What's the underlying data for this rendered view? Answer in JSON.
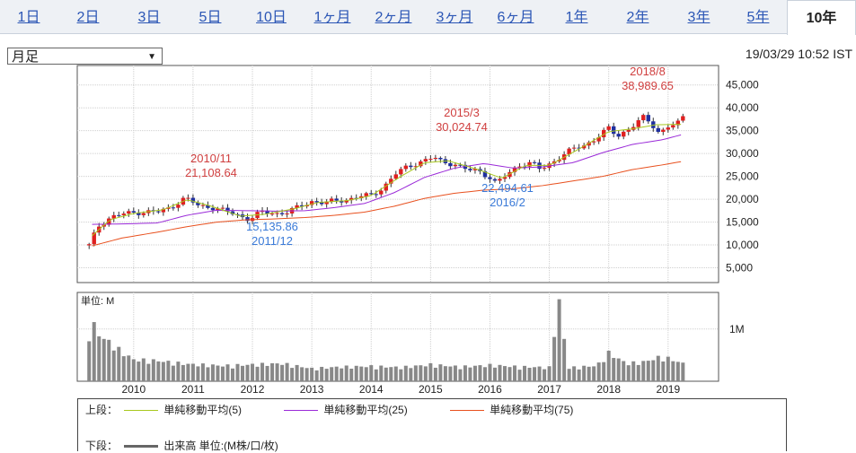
{
  "tabs": [
    {
      "label": "1日"
    },
    {
      "label": "2日"
    },
    {
      "label": "3日"
    },
    {
      "label": "5日"
    },
    {
      "label": "10日"
    },
    {
      "label": "1ヶ月"
    },
    {
      "label": "2ヶ月"
    },
    {
      "label": "3ヶ月"
    },
    {
      "label": "6ヶ月"
    },
    {
      "label": "1年"
    },
    {
      "label": "2年"
    },
    {
      "label": "3年"
    },
    {
      "label": "5年"
    },
    {
      "label": "10年"
    }
  ],
  "active_tab": "10年",
  "period_select": {
    "value": "月足"
  },
  "timestamp": "19/03/29 10:52 IST",
  "colors": {
    "up": "#e02020",
    "down": "#2030a0",
    "ma5": "#a8c81e",
    "ma25": "#9a2ad8",
    "ma75": "#e8501e",
    "volume": "#888888",
    "high_label": "#d04040",
    "low_label": "#3a7ad8"
  },
  "chart_data": {
    "type": "candlestick",
    "y_ticks": [
      "45,000",
      "40,000",
      "35,000",
      "30,000",
      "25,000",
      "20,000",
      "15,000",
      "10,000",
      "5,000"
    ],
    "ylim": [
      0,
      47500
    ],
    "x_ticks": [
      {
        "label": "2010",
        "year": 2010
      },
      {
        "label": "2011",
        "year": 2011
      },
      {
        "label": "2012",
        "year": 2012
      },
      {
        "label": "2013",
        "year": 2013
      },
      {
        "label": "2014",
        "year": 2014
      },
      {
        "label": "2015",
        "year": 2015
      },
      {
        "label": "2016",
        "year": 2016
      },
      {
        "label": "2017",
        "year": 2017
      },
      {
        "label": "2018",
        "year": 2018
      },
      {
        "label": "2019",
        "year": 2019
      }
    ],
    "x_range": [
      2009.05,
      2019.85
    ],
    "annotations": [
      {
        "line1": "2018/8",
        "line2": "38,989.65",
        "kind": "high"
      },
      {
        "line1": "2015/3",
        "line2": "30,024.74",
        "kind": "high"
      },
      {
        "line1": "2010/11",
        "line2": "21,108.64",
        "kind": "high"
      },
      {
        "line1": "15,135.86",
        "line2": "2011/12",
        "kind": "low"
      },
      {
        "line1": "22,494.61",
        "line2": "2016/2",
        "kind": "low"
      }
    ],
    "series_anchors": {
      "close": [
        [
          2009.25,
          9900
        ],
        [
          2009.4,
          14000
        ],
        [
          2009.6,
          16000
        ],
        [
          2009.8,
          16800
        ],
        [
          2010.0,
          17000
        ],
        [
          2010.2,
          17300
        ],
        [
          2010.4,
          17200
        ],
        [
          2010.6,
          18000
        ],
        [
          2010.85,
          20200
        ],
        [
          2010.95,
          19800
        ],
        [
          2011.1,
          18500
        ],
        [
          2011.35,
          18200
        ],
        [
          2011.6,
          17200
        ],
        [
          2011.85,
          16000
        ],
        [
          2011.95,
          15700
        ],
        [
          2012.15,
          17200
        ],
        [
          2012.4,
          16800
        ],
        [
          2012.6,
          17300
        ],
        [
          2012.8,
          18400
        ],
        [
          2013.0,
          19500
        ],
        [
          2013.2,
          19300
        ],
        [
          2013.4,
          19600
        ],
        [
          2013.6,
          19900
        ],
        [
          2013.8,
          20700
        ],
        [
          2014.0,
          20800
        ],
        [
          2014.2,
          22500
        ],
        [
          2014.4,
          25500
        ],
        [
          2014.6,
          27000
        ],
        [
          2014.85,
          28300
        ],
        [
          2015.05,
          29200
        ],
        [
          2015.2,
          28000
        ],
        [
          2015.4,
          27800
        ],
        [
          2015.6,
          26500
        ],
        [
          2015.8,
          26200
        ],
        [
          2016.0,
          24800
        ],
        [
          2016.1,
          23500
        ],
        [
          2016.3,
          25500
        ],
        [
          2016.5,
          27500
        ],
        [
          2016.7,
          28000
        ],
        [
          2016.85,
          26500
        ],
        [
          2017.0,
          27600
        ],
        [
          2017.2,
          29500
        ],
        [
          2017.4,
          31000
        ],
        [
          2017.6,
          31800
        ],
        [
          2017.8,
          33500
        ],
        [
          2018.0,
          35500
        ],
        [
          2018.15,
          33800
        ],
        [
          2018.35,
          35500
        ],
        [
          2018.6,
          38000
        ],
        [
          2018.75,
          36000
        ],
        [
          2018.85,
          34500
        ],
        [
          2019.0,
          36000
        ],
        [
          2019.15,
          36300
        ],
        [
          2019.25,
          38000
        ]
      ],
      "ma5": [
        [
          2009.3,
          12000
        ],
        [
          2009.6,
          15500
        ],
        [
          2010.0,
          16900
        ],
        [
          2010.5,
          17700
        ],
        [
          2010.9,
          19900
        ],
        [
          2011.3,
          18500
        ],
        [
          2011.8,
          16300
        ],
        [
          2012.2,
          16700
        ],
        [
          2012.7,
          17900
        ],
        [
          2013.1,
          19300
        ],
        [
          2013.6,
          19700
        ],
        [
          2014.0,
          20800
        ],
        [
          2014.5,
          25000
        ],
        [
          2014.9,
          28000
        ],
        [
          2015.3,
          28400
        ],
        [
          2015.8,
          26500
        ],
        [
          2016.2,
          24600
        ],
        [
          2016.6,
          27400
        ],
        [
          2017.0,
          27400
        ],
        [
          2017.5,
          31000
        ],
        [
          2018.0,
          34800
        ],
        [
          2018.4,
          35400
        ],
        [
          2018.8,
          36300
        ],
        [
          2019.25,
          36400
        ]
      ],
      "ma25": [
        [
          2009.3,
          14500
        ],
        [
          2009.8,
          14600
        ],
        [
          2010.4,
          14800
        ],
        [
          2010.9,
          16500
        ],
        [
          2011.4,
          17600
        ],
        [
          2011.9,
          17500
        ],
        [
          2012.4,
          17400
        ],
        [
          2012.9,
          17500
        ],
        [
          2013.4,
          18200
        ],
        [
          2013.9,
          19100
        ],
        [
          2014.4,
          21500
        ],
        [
          2014.9,
          24800
        ],
        [
          2015.4,
          26800
        ],
        [
          2015.9,
          27800
        ],
        [
          2016.4,
          26800
        ],
        [
          2016.9,
          27100
        ],
        [
          2017.4,
          28000
        ],
        [
          2017.9,
          30200
        ],
        [
          2018.4,
          32000
        ],
        [
          2018.9,
          33000
        ],
        [
          2019.25,
          34200
        ]
      ],
      "ma75": [
        [
          2009.3,
          9800
        ],
        [
          2009.8,
          11500
        ],
        [
          2010.4,
          12800
        ],
        [
          2010.9,
          14000
        ],
        [
          2011.4,
          15000
        ],
        [
          2011.9,
          15500
        ],
        [
          2012.4,
          15700
        ],
        [
          2012.9,
          16000
        ],
        [
          2013.4,
          16500
        ],
        [
          2013.9,
          17200
        ],
        [
          2014.4,
          18500
        ],
        [
          2014.9,
          20200
        ],
        [
          2015.4,
          21300
        ],
        [
          2015.9,
          22000
        ],
        [
          2016.4,
          22300
        ],
        [
          2016.9,
          23000
        ],
        [
          2017.4,
          24000
        ],
        [
          2017.9,
          25000
        ],
        [
          2018.4,
          26500
        ],
        [
          2018.9,
          27500
        ],
        [
          2019.25,
          28300
        ]
      ]
    },
    "volume": {
      "label": "1M",
      "unit_title": "単位: M",
      "tick_value": 1000000,
      "anchors": [
        [
          2009.25,
          900000
        ],
        [
          2009.3,
          1050000
        ],
        [
          2009.45,
          800000
        ],
        [
          2009.6,
          700000
        ],
        [
          2009.8,
          530000
        ],
        [
          2010.0,
          390000
        ],
        [
          2010.4,
          370000
        ],
        [
          2010.9,
          310000
        ],
        [
          2011.5,
          280000
        ],
        [
          2012.0,
          300000
        ],
        [
          2012.5,
          320000
        ],
        [
          2013.0,
          230000
        ],
        [
          2013.5,
          260000
        ],
        [
          2014.0,
          270000
        ],
        [
          2014.5,
          250000
        ],
        [
          2015.0,
          300000
        ],
        [
          2015.5,
          260000
        ],
        [
          2016.0,
          290000
        ],
        [
          2016.5,
          260000
        ],
        [
          2017.0,
          250000
        ],
        [
          2017.17,
          1570000
        ],
        [
          2017.3,
          240000
        ],
        [
          2017.8,
          280000
        ],
        [
          2018.0,
          510000
        ],
        [
          2018.3,
          320000
        ],
        [
          2018.6,
          350000
        ],
        [
          2018.9,
          450000
        ],
        [
          2019.25,
          320000
        ]
      ]
    },
    "legend": {
      "upper_label": "上段：",
      "ma5": "単純移動平均(5)",
      "ma25": "単純移動平均(25)",
      "ma75": "単純移動平均(75)",
      "lower_label": "下段：",
      "volume": "出来高 単位:(M株/口/枚)"
    }
  }
}
